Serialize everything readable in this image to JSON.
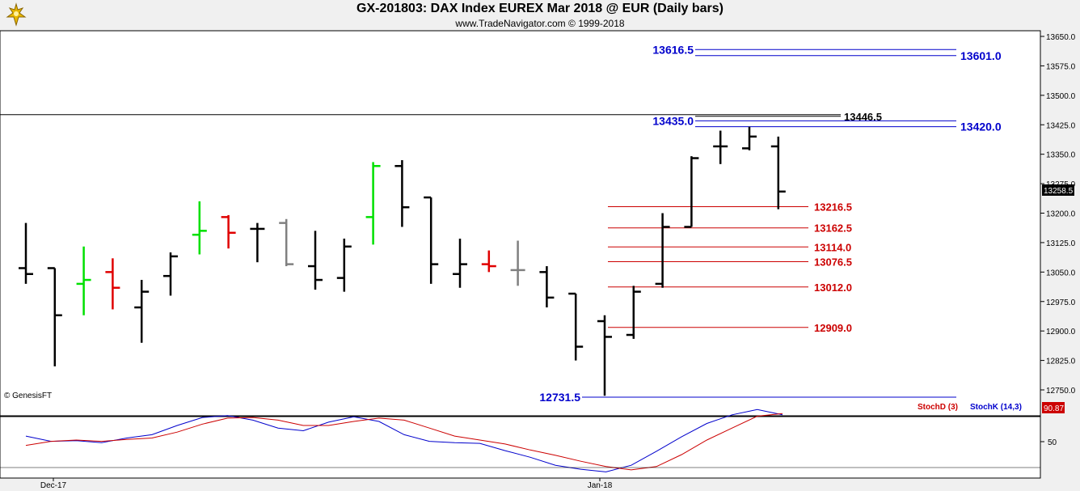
{
  "header": {
    "title": "GX-201803:  DAX Index EUREX Mar 2018 @ EUR  (Daily bars)",
    "subtitle": "www.TradeNavigator.com © 1999-2018"
  },
  "watermark": "© GenesisFT",
  "colors": {
    "bar_up": "#00e000",
    "bar_down": "#e00000",
    "bar_neutral": "#808080",
    "bar_default": "#000000",
    "level_red": "#cc0000",
    "level_blue": "#0000cc",
    "stoch_d": "#cc0000",
    "stoch_k": "#0000cc"
  },
  "chart_data": [
    {
      "type": "ohlc",
      "y_axis": {
        "ticks": [
          "13650.0",
          "13575.0",
          "13500.0",
          "13425.0",
          "13350.0",
          "13275.0",
          "13200.0",
          "13125.0",
          "13050.0",
          "12975.0",
          "12900.0",
          "12825.0",
          "12750.0"
        ],
        "tick_values": [
          13650,
          13575,
          13500,
          13425,
          13350,
          13275,
          13200,
          13125,
          13050,
          12975,
          12900,
          12825,
          12750
        ],
        "last_price_label": "13258.5",
        "last_price": 13258.5
      },
      "x_axis": {
        "labels": [
          {
            "text": "Dec-17",
            "bar_index": 0
          },
          {
            "text": "Jan-18",
            "bar_index": 29
          }
        ]
      },
      "bars": [
        {
          "o": 13060,
          "h": 13175,
          "l": 13020,
          "c": 13045,
          "color": "default"
        },
        {
          "o": 13060,
          "h": 13060,
          "l": 12810,
          "c": 12940,
          "color": "default"
        },
        {
          "o": 13020,
          "h": 13115,
          "l": 12940,
          "c": 13030,
          "color": "up"
        },
        {
          "o": 13050,
          "h": 13085,
          "l": 12955,
          "c": 13010,
          "color": "down"
        },
        {
          "o": 12960,
          "h": 13030,
          "l": 12870,
          "c": 13000,
          "color": "default"
        },
        {
          "o": 13040,
          "h": 13100,
          "l": 12990,
          "c": 13090,
          "color": "default"
        },
        {
          "o": 13145,
          "h": 13230,
          "l": 13095,
          "c": 13155,
          "color": "up"
        },
        {
          "o": 13190,
          "h": 13195,
          "l": 13110,
          "c": 13150,
          "color": "down"
        },
        {
          "o": 13160,
          "h": 13175,
          "l": 13075,
          "c": 13160,
          "color": "default"
        },
        {
          "o": 13175,
          "h": 13185,
          "l": 13065,
          "c": 13070,
          "color": "neutral"
        },
        {
          "o": 13065,
          "h": 13155,
          "l": 13005,
          "c": 13030,
          "color": "default"
        },
        {
          "o": 13035,
          "h": 13135,
          "l": 13000,
          "c": 13115,
          "color": "default"
        },
        {
          "o": 13190,
          "h": 13330,
          "l": 13120,
          "c": 13320,
          "color": "up"
        },
        {
          "o": 13320,
          "h": 13335,
          "l": 13165,
          "c": 13215,
          "color": "default"
        },
        {
          "o": 13240,
          "h": 13240,
          "l": 13020,
          "c": 13070,
          "color": "default"
        },
        {
          "o": 13045,
          "h": 13135,
          "l": 13010,
          "c": 13070,
          "color": "default"
        },
        {
          "o": 13070,
          "h": 13105,
          "l": 13050,
          "c": 13065,
          "color": "down"
        },
        {
          "o": 13055,
          "h": 13130,
          "l": 13015,
          "c": 13055,
          "color": "neutral"
        },
        {
          "o": 13050,
          "h": 13065,
          "l": 12960,
          "c": 12985,
          "color": "default"
        },
        {
          "o": 12995,
          "h": 12995,
          "l": 12825,
          "c": 12860,
          "color": "default"
        },
        {
          "o": 12925,
          "h": 12940,
          "l": 12735,
          "c": 12885,
          "color": "default"
        },
        {
          "o": 12890,
          "h": 13015,
          "l": 12880,
          "c": 13000,
          "color": "default"
        },
        {
          "o": 13020,
          "h": 13200,
          "l": 13010,
          "c": 13165,
          "color": "default"
        },
        {
          "o": 13165,
          "h": 13345,
          "l": 13165,
          "c": 13340,
          "color": "default"
        },
        {
          "o": 13370,
          "h": 13410,
          "l": 13325,
          "c": 13370,
          "color": "default"
        },
        {
          "o": 13365,
          "h": 13420,
          "l": 13360,
          "c": 13395,
          "color": "default"
        },
        {
          "o": 13370,
          "h": 13395,
          "l": 13210,
          "c": 13255,
          "color": "default"
        }
      ],
      "bar_x_index": [
        0,
        1,
        2,
        3,
        4,
        5,
        6,
        7,
        8,
        9,
        10,
        11,
        12,
        13,
        14,
        15,
        16,
        17,
        18,
        19,
        20,
        21,
        22,
        23,
        24,
        25,
        26
      ],
      "levels": [
        {
          "label": "13616.5",
          "value": 13616.5,
          "color": "blue",
          "label_side": "left",
          "bold": true
        },
        {
          "label": "13601.0",
          "value": 13601.0,
          "color": "blue",
          "label_side": "right",
          "bold": true
        },
        {
          "label": "13446.5",
          "value": 13446.5,
          "color": "black",
          "label_side": "right-inner",
          "bold": true
        },
        {
          "label": "13435.0",
          "value": 13435.0,
          "color": "blue",
          "label_side": "left",
          "bold": true
        },
        {
          "label": "13420.0",
          "value": 13420.0,
          "color": "blue",
          "label_side": "right",
          "bold": true
        },
        {
          "label": "13216.5",
          "value": 13216.5,
          "color": "red",
          "label_side": "right-red",
          "bold": true
        },
        {
          "label": "13162.5",
          "value": 13162.5,
          "color": "red",
          "label_side": "right-red",
          "bold": true
        },
        {
          "label": "13114.0",
          "value": 13114.0,
          "color": "red",
          "label_side": "right-red",
          "bold": true
        },
        {
          "label": "13076.5",
          "value": 13076.5,
          "color": "red",
          "label_side": "right-red",
          "bold": true
        },
        {
          "label": "13012.0",
          "value": 13012.0,
          "color": "red",
          "label_side": "right-red",
          "bold": true
        },
        {
          "label": "12909.0",
          "value": 12909.0,
          "color": "red",
          "label_side": "right-red",
          "bold": true
        },
        {
          "label": "12731.5",
          "value": 12731.5,
          "color": "blue",
          "label_side": "left",
          "bold": true
        }
      ],
      "horizontal_reference": 13446.5
    },
    {
      "type": "line",
      "title": "",
      "legend": [
        {
          "text": "StochD (3)",
          "color": "red"
        },
        {
          "text": "StochK (14,3)",
          "color": "blue"
        }
      ],
      "y_axis": {
        "ticks": [
          "50"
        ],
        "tick_values": [
          50
        ],
        "last_value_label": "90.87",
        "last_value": 90.87,
        "ylim": [
          0,
          100
        ]
      },
      "series": [
        {
          "name": "StochK (14,3)",
          "color": "blue",
          "values": [
            56,
            48,
            49,
            46,
            53,
            58,
            72,
            84,
            87,
            80,
            68,
            64,
            77,
            85,
            78,
            58,
            48,
            46,
            45,
            34,
            24,
            12,
            6,
            2,
            12,
            33,
            55,
            75,
            88,
            96,
            88
          ]
        },
        {
          "name": "StochD (3)",
          "color": "red",
          "values": [
            42,
            48,
            50,
            48,
            51,
            53,
            62,
            74,
            83,
            84,
            80,
            72,
            72,
            78,
            83,
            80,
            68,
            56,
            50,
            44,
            35,
            27,
            18,
            10,
            5,
            10,
            28,
            50,
            68,
            86,
            90
          ]
        }
      ]
    }
  ]
}
